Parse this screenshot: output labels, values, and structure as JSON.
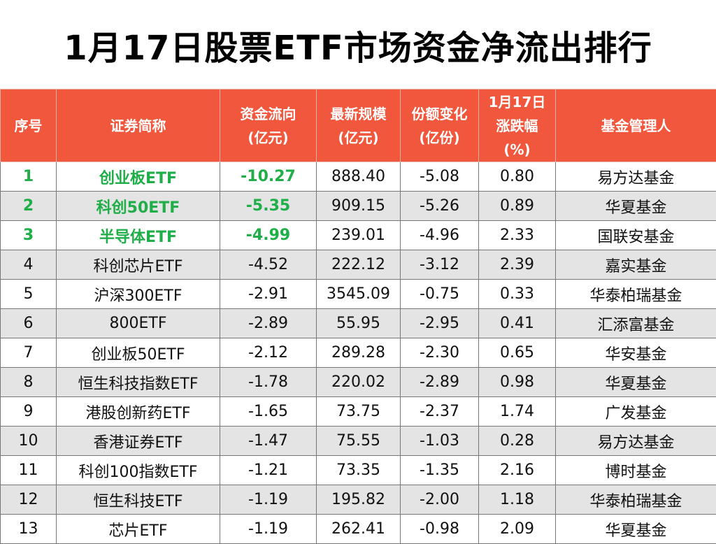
{
  "title": "1月17日股票ETF市场资金净流出排行",
  "chart_data": {
    "type": "table",
    "columns": [
      "序号",
      "证券简称",
      "资金流向\n(亿元)",
      "最新规模\n(亿元)",
      "份额变化\n(亿份)",
      "1月17日\n涨跌幅\n(%)",
      "基金管理人"
    ],
    "highlight_color": "#1fae48",
    "header_color": "#f0573c",
    "rows": [
      {
        "rank": "1",
        "name": "创业板ETF",
        "flow": "-10.27",
        "scale": "888.40",
        "share_change": "-5.08",
        "change_pct": "0.80",
        "manager": "易方达基金",
        "highlight": true
      },
      {
        "rank": "2",
        "name": "科创50ETF",
        "flow": "-5.35",
        "scale": "909.15",
        "share_change": "-5.26",
        "change_pct": "0.89",
        "manager": "华夏基金",
        "highlight": true
      },
      {
        "rank": "3",
        "name": "半导体ETF",
        "flow": "-4.99",
        "scale": "239.01",
        "share_change": "-4.96",
        "change_pct": "2.33",
        "manager": "国联安基金",
        "highlight": true
      },
      {
        "rank": "4",
        "name": "科创芯片ETF",
        "flow": "-4.52",
        "scale": "222.12",
        "share_change": "-3.12",
        "change_pct": "2.39",
        "manager": "嘉实基金",
        "highlight": false
      },
      {
        "rank": "5",
        "name": "沪深300ETF",
        "flow": "-2.91",
        "scale": "3545.09",
        "share_change": "-0.75",
        "change_pct": "0.33",
        "manager": "华泰柏瑞基金",
        "highlight": false
      },
      {
        "rank": "6",
        "name": "800ETF",
        "flow": "-2.89",
        "scale": "55.95",
        "share_change": "-2.95",
        "change_pct": "0.41",
        "manager": "汇添富基金",
        "highlight": false
      },
      {
        "rank": "7",
        "name": "创业板50ETF",
        "flow": "-2.12",
        "scale": "289.28",
        "share_change": "-2.30",
        "change_pct": "0.65",
        "manager": "华安基金",
        "highlight": false
      },
      {
        "rank": "8",
        "name": "恒生科技指数ETF",
        "flow": "-1.78",
        "scale": "220.02",
        "share_change": "-2.89",
        "change_pct": "0.98",
        "manager": "华夏基金",
        "highlight": false
      },
      {
        "rank": "9",
        "name": "港股创新药ETF",
        "flow": "-1.65",
        "scale": "73.75",
        "share_change": "-2.37",
        "change_pct": "1.74",
        "manager": "广发基金",
        "highlight": false
      },
      {
        "rank": "10",
        "name": "香港证券ETF",
        "flow": "-1.47",
        "scale": "75.55",
        "share_change": "-1.03",
        "change_pct": "0.28",
        "manager": "易方达基金",
        "highlight": false
      },
      {
        "rank": "11",
        "name": "科创100指数ETF",
        "flow": "-1.21",
        "scale": "73.35",
        "share_change": "-1.35",
        "change_pct": "2.16",
        "manager": "博时基金",
        "highlight": false
      },
      {
        "rank": "12",
        "name": "恒生科技ETF",
        "flow": "-1.19",
        "scale": "195.82",
        "share_change": "-2.00",
        "change_pct": "1.18",
        "manager": "华泰柏瑞基金",
        "highlight": false
      },
      {
        "rank": "13",
        "name": "芯片ETF",
        "flow": "-1.19",
        "scale": "262.41",
        "share_change": "-0.98",
        "change_pct": "2.09",
        "manager": "华夏基金",
        "highlight": false
      }
    ]
  }
}
